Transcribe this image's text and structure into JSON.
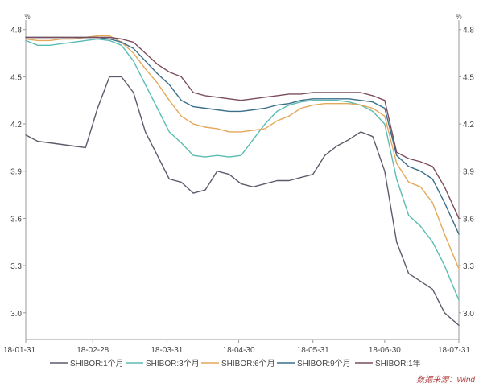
{
  "chart_data": {
    "type": "line",
    "y_unit_left": "%",
    "y_unit_right": "%",
    "x_ticks": [
      "18-01-31",
      "18-02-28",
      "18-03-31",
      "18-04-30",
      "18-05-31",
      "18-06-30",
      "18-07-31"
    ],
    "y_ticks": [
      "3.0",
      "3.3",
      "3.6",
      "3.9",
      "4.2",
      "4.5",
      "4.8"
    ],
    "ylim": [
      2.83,
      4.86
    ],
    "grid": false,
    "legend_position": "bottom",
    "source": "数据来源：Wind",
    "x": [
      "2018-01-31",
      "2018-02-05",
      "2018-02-10",
      "2018-02-15",
      "2018-02-20",
      "2018-02-25",
      "2018-03-02",
      "2018-03-07",
      "2018-03-12",
      "2018-03-17",
      "2018-03-22",
      "2018-03-27",
      "2018-04-01",
      "2018-04-06",
      "2018-04-11",
      "2018-04-16",
      "2018-04-21",
      "2018-04-26",
      "2018-05-01",
      "2018-05-06",
      "2018-05-11",
      "2018-05-16",
      "2018-05-21",
      "2018-05-26",
      "2018-05-31",
      "2018-06-05",
      "2018-06-10",
      "2018-06-15",
      "2018-06-20",
      "2018-06-25",
      "2018-06-30",
      "2018-07-05",
      "2018-07-10",
      "2018-07-15",
      "2018-07-20",
      "2018-07-25",
      "2018-07-31"
    ],
    "series": [
      {
        "name": "SHIBOR:1个月",
        "color": "#5f5a6b",
        "values": [
          4.13,
          4.09,
          4.08,
          4.07,
          4.06,
          4.05,
          4.3,
          4.5,
          4.5,
          4.4,
          4.15,
          4.0,
          3.85,
          3.83,
          3.76,
          3.78,
          3.9,
          3.88,
          3.82,
          3.8,
          3.82,
          3.84,
          3.84,
          3.86,
          3.88,
          4.0,
          4.06,
          4.1,
          4.15,
          4.12,
          3.9,
          3.45,
          3.25,
          3.2,
          3.15,
          3.0,
          2.92
        ]
      },
      {
        "name": "SHIBOR:3个月",
        "color": "#5bbcb2",
        "values": [
          4.73,
          4.7,
          4.7,
          4.71,
          4.72,
          4.73,
          4.74,
          4.73,
          4.7,
          4.6,
          4.45,
          4.3,
          4.15,
          4.08,
          4.0,
          3.99,
          4.0,
          3.99,
          4.0,
          4.1,
          4.2,
          4.28,
          4.32,
          4.34,
          4.35,
          4.35,
          4.35,
          4.34,
          4.32,
          4.28,
          4.2,
          3.85,
          3.62,
          3.55,
          3.45,
          3.3,
          3.08
        ]
      },
      {
        "name": "SHIBOR:6个月",
        "color": "#e4a85a",
        "values": [
          4.74,
          4.73,
          4.73,
          4.74,
          4.74,
          4.75,
          4.76,
          4.76,
          4.72,
          4.65,
          4.55,
          4.46,
          4.35,
          4.25,
          4.2,
          4.18,
          4.17,
          4.15,
          4.15,
          4.16,
          4.17,
          4.22,
          4.25,
          4.3,
          4.32,
          4.33,
          4.33,
          4.33,
          4.32,
          4.3,
          4.25,
          3.95,
          3.83,
          3.8,
          3.7,
          3.5,
          3.28
        ]
      },
      {
        "name": "SHIBOR:9个月",
        "color": "#3a6f8c",
        "values": [
          4.75,
          4.75,
          4.75,
          4.75,
          4.75,
          4.75,
          4.75,
          4.74,
          4.72,
          4.68,
          4.6,
          4.52,
          4.45,
          4.35,
          4.31,
          4.3,
          4.29,
          4.28,
          4.28,
          4.29,
          4.3,
          4.32,
          4.33,
          4.35,
          4.36,
          4.36,
          4.36,
          4.36,
          4.35,
          4.34,
          4.3,
          4.0,
          3.93,
          3.9,
          3.85,
          3.7,
          3.5
        ]
      },
      {
        "name": "SHIBOR:1年",
        "color": "#7a4d5e",
        "values": [
          4.75,
          4.75,
          4.75,
          4.75,
          4.75,
          4.75,
          4.75,
          4.75,
          4.74,
          4.72,
          4.65,
          4.58,
          4.53,
          4.5,
          4.4,
          4.38,
          4.37,
          4.36,
          4.35,
          4.36,
          4.37,
          4.38,
          4.39,
          4.39,
          4.4,
          4.4,
          4.4,
          4.4,
          4.4,
          4.38,
          4.35,
          4.02,
          3.98,
          3.96,
          3.93,
          3.8,
          3.6
        ]
      }
    ]
  }
}
